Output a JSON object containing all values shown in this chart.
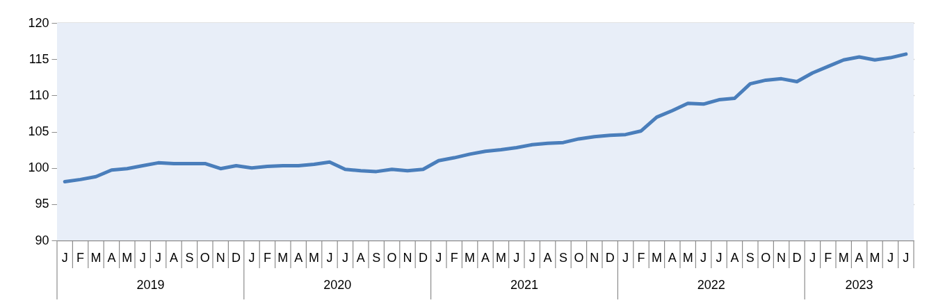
{
  "chart_data": {
    "type": "line",
    "categories": [
      "J",
      "F",
      "M",
      "A",
      "M",
      "J",
      "J",
      "A",
      "S",
      "O",
      "N",
      "D",
      "J",
      "F",
      "M",
      "A",
      "M",
      "J",
      "J",
      "A",
      "S",
      "O",
      "N",
      "D",
      "J",
      "F",
      "M",
      "A",
      "M",
      "J",
      "J",
      "A",
      "S",
      "O",
      "N",
      "D",
      "J",
      "F",
      "M",
      "A",
      "M",
      "J",
      "J",
      "A",
      "S",
      "O",
      "N",
      "D",
      "J",
      "F",
      "M",
      "A",
      "M",
      "J",
      "J"
    ],
    "series": [
      {
        "color": "#4a7ebb",
        "values": [
          98.1,
          98.4,
          98.8,
          99.7,
          99.9,
          100.3,
          100.7,
          100.6,
          100.6,
          100.6,
          99.9,
          100.3,
          100.0,
          100.2,
          100.3,
          100.3,
          100.5,
          100.8,
          99.8,
          99.6,
          99.5,
          99.8,
          99.6,
          99.8,
          101.0,
          101.4,
          101.9,
          102.3,
          102.5,
          102.8,
          103.2,
          103.4,
          103.5,
          104.0,
          104.3,
          104.5,
          104.6,
          105.1,
          107.0,
          107.9,
          108.9,
          108.8,
          109.4,
          109.6,
          111.6,
          112.1,
          112.3,
          111.9,
          113.1,
          114.0,
          114.9,
          115.3,
          114.9,
          115.2,
          115.7
        ]
      }
    ],
    "ylim": [
      90,
      120
    ],
    "yticks": [
      90,
      95,
      100,
      105,
      110,
      115,
      120
    ],
    "grid": "y",
    "marker": "none",
    "line_style": "solid",
    "annotations": [
      "2019",
      "2020",
      "2021",
      "2022",
      "2023"
    ]
  }
}
